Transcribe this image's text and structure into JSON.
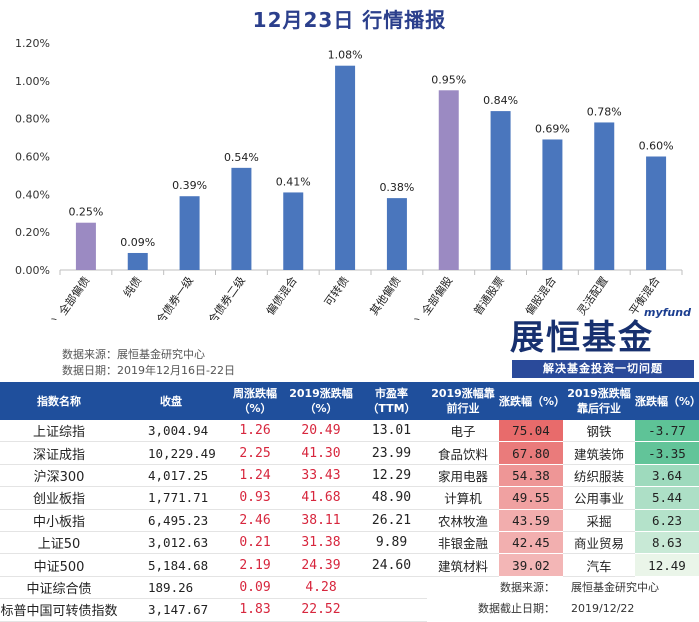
{
  "title": "12月23日  行情播报",
  "chart_data": {
    "type": "bar",
    "categories": [
      "（总）全部偏债",
      "纯债",
      "混合债券一级",
      "混合债券二级",
      "偏债混合",
      "可转债",
      "其他偏债",
      "（总）全部偏股",
      "普通股票",
      "偏股混合",
      "灵活配置",
      "平衡混合"
    ],
    "values": [
      0.25,
      0.09,
      0.39,
      0.54,
      0.41,
      1.08,
      0.38,
      0.95,
      0.84,
      0.69,
      0.78,
      0.6
    ],
    "data_labels": [
      "0.25%",
      "0.09%",
      "0.39%",
      "0.54%",
      "0.41%",
      "1.08%",
      "0.38%",
      "0.95%",
      "0.84%",
      "0.69%",
      "0.78%",
      "0.60%"
    ],
    "highlight_indices": [
      0,
      7
    ],
    "yticks": [
      "0.00%",
      "0.20%",
      "0.40%",
      "0.60%",
      "0.80%",
      "1.00%",
      "1.20%"
    ],
    "ylim": [
      0,
      1.2
    ],
    "colors": {
      "bar": "#4a76bd",
      "highlight": "#9b8ac2"
    }
  },
  "source": {
    "line1": "数据来源：展恒基金研究中心",
    "line2": "数据日期：2019年12月16日-22日"
  },
  "logo": {
    "small": "myfund",
    "main": "展恒基金",
    "slogan": "解决基金投资一切问题"
  },
  "left_table": {
    "headers": [
      "指数名称",
      "收盘",
      "周涨跌幅（%）",
      "2019涨跌幅（%）",
      "市盈率（TTM）"
    ],
    "rows": [
      {
        "name": "上证综指",
        "close": "3,004.94",
        "week": "1.26",
        "ytd": "20.49",
        "pe": "13.01"
      },
      {
        "name": "深证成指",
        "close": "10,229.49",
        "week": "2.25",
        "ytd": "41.30",
        "pe": "23.99"
      },
      {
        "name": "沪深300",
        "close": "4,017.25",
        "week": "1.24",
        "ytd": "33.43",
        "pe": "12.29"
      },
      {
        "name": "创业板指",
        "close": "1,771.71",
        "week": "0.93",
        "ytd": "41.68",
        "pe": "48.90"
      },
      {
        "name": "中小板指",
        "close": "6,495.23",
        "week": "2.46",
        "ytd": "38.11",
        "pe": "26.21"
      },
      {
        "name": "上证50",
        "close": "3,012.63",
        "week": "0.21",
        "ytd": "31.38",
        "pe": "9.89"
      },
      {
        "name": "中证500",
        "close": "5,184.68",
        "week": "2.19",
        "ytd": "24.39",
        "pe": "24.60"
      },
      {
        "name": "中证综合债",
        "close": "189.26",
        "week": "0.09",
        "ytd": "4.28",
        "pe": ""
      },
      {
        "name": "标普中国可转债指数",
        "close": "3,147.67",
        "week": "1.83",
        "ytd": "22.52",
        "pe": ""
      }
    ]
  },
  "right_table": {
    "headers": [
      "2019涨幅靠前行业",
      "涨跌幅（%）",
      "2019涨跌幅靠后行业",
      "涨跌幅（%）"
    ],
    "rows": [
      {
        "top": "电子",
        "top_chg": "75.04",
        "top_level": 1.0,
        "bottom": "钢铁",
        "bottom_chg": "-3.77"
      },
      {
        "top": "食品饮料",
        "top_chg": "67.80",
        "top_level": 0.85,
        "bottom": "建筑装饰",
        "bottom_chg": "-3.35"
      },
      {
        "top": "家用电器",
        "top_chg": "54.38",
        "top_level": 0.6,
        "bottom": "纺织服装",
        "bottom_chg": "3.64"
      },
      {
        "top": "计算机",
        "top_chg": "49.55",
        "top_level": 0.5,
        "bottom": "公用事业",
        "bottom_chg": "5.44"
      },
      {
        "top": "农林牧渔",
        "top_chg": "43.59",
        "top_level": 0.38,
        "bottom": "采掘",
        "bottom_chg": "6.23"
      },
      {
        "top": "非银金融",
        "top_chg": "42.45",
        "top_level": 0.36,
        "bottom": "商业贸易",
        "bottom_chg": "8.63"
      },
      {
        "top": "建筑材料",
        "top_chg": "39.02",
        "top_level": 0.3,
        "bottom": "汽车",
        "bottom_chg": "12.49"
      }
    ],
    "footer": {
      "source_label": "数据来源：",
      "source_value": "展恒基金研究中心",
      "date_label": "数据截止日期：",
      "date_value": "2019/12/22"
    }
  }
}
